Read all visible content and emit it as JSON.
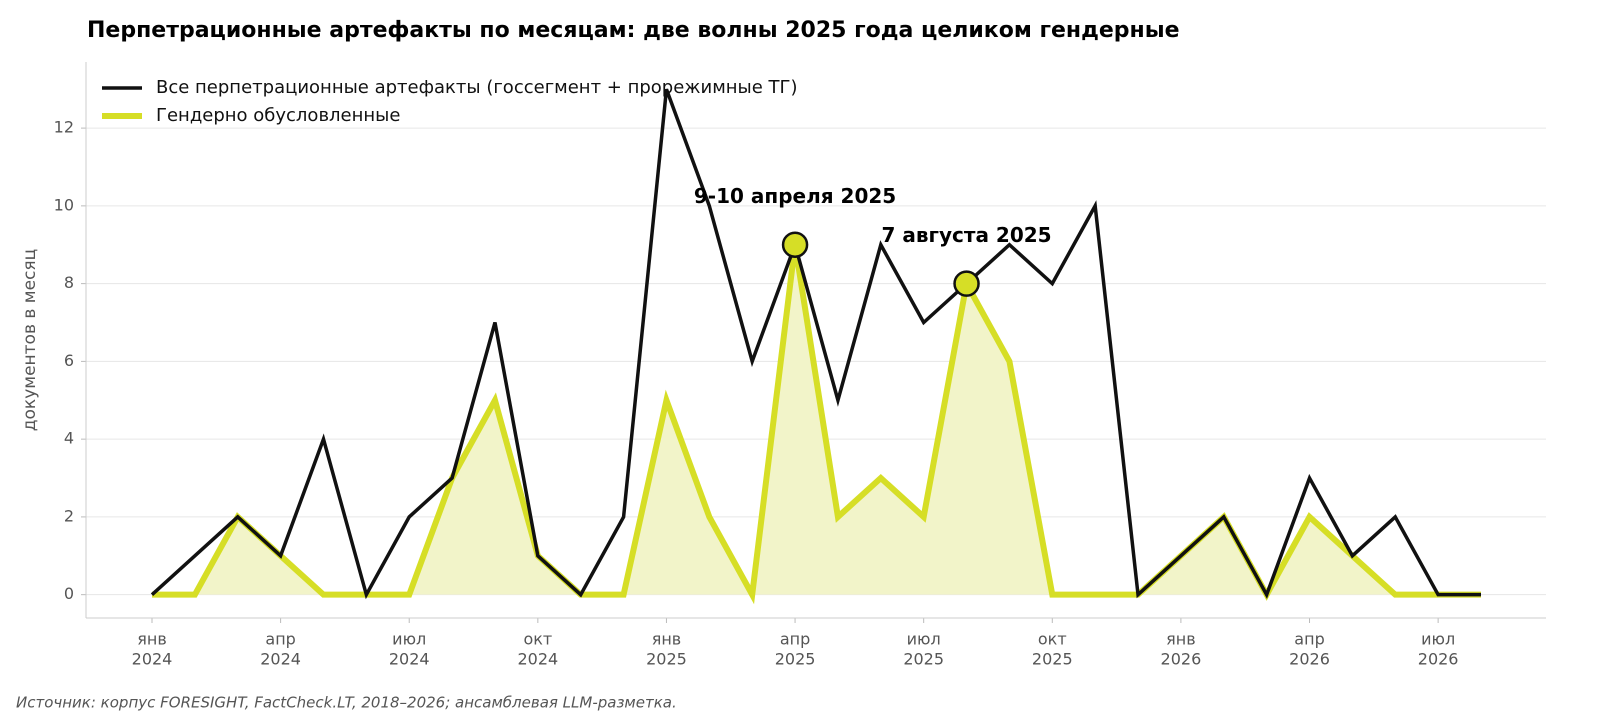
{
  "chart_data": {
    "type": "line",
    "title": "Перпетрационные артефакты по месяцам: две волны 2025 года целиком гендерные",
    "y_label": "документов в месяц",
    "source": "Источник: корпус FORESIGHT, FactCheck.LT, 2018–2026; ансамблевая LLM-разметка.",
    "x": [
      "2024-01",
      "2024-02",
      "2024-03",
      "2024-04",
      "2024-05",
      "2024-06",
      "2024-07",
      "2024-08",
      "2024-09",
      "2024-10",
      "2024-11",
      "2024-12",
      "2025-01",
      "2025-02",
      "2025-03",
      "2025-04",
      "2025-05",
      "2025-06",
      "2025-07",
      "2025-08",
      "2025-09",
      "2025-10",
      "2025-11",
      "2025-12",
      "2026-01",
      "2026-02",
      "2026-03",
      "2026-04",
      "2026-05",
      "2026-06",
      "2026-07",
      "2026-08"
    ],
    "series": [
      {
        "name": "Все перпетрационные артефакты (госсегмент + прорежимные ТГ)",
        "color": "#111111",
        "values": [
          0,
          1,
          2,
          1,
          4,
          0,
          2,
          3,
          7,
          1,
          0,
          2,
          13,
          10,
          6,
          9,
          5,
          9,
          7,
          8,
          9,
          8,
          10,
          0,
          1,
          2,
          0,
          3,
          1,
          2,
          0,
          0
        ]
      },
      {
        "name": "Гендерно обусловленные",
        "color": "#d6de26",
        "fill": "#f2f4c9",
        "values": [
          0,
          0,
          2,
          1,
          0,
          0,
          0,
          3,
          5,
          1,
          0,
          0,
          5,
          2,
          0,
          9,
          2,
          3,
          2,
          8,
          6,
          0,
          0,
          0,
          1,
          2,
          0,
          2,
          1,
          0,
          0,
          0
        ]
      }
    ],
    "annotations": [
      {
        "text": "9-10 апреля 2025",
        "x": "2025-04",
        "y": 9
      },
      {
        "text": "7 августа 2025",
        "x": "2025-08",
        "y": 8
      }
    ],
    "ylim": [
      -0.6,
      13.7
    ],
    "yticks": [
      0,
      2,
      4,
      6,
      8,
      10,
      12
    ],
    "xticks": [
      {
        "value": "2024-01",
        "label": [
          "янв",
          "2024"
        ]
      },
      {
        "value": "2024-04",
        "label": [
          "апр",
          "2024"
        ]
      },
      {
        "value": "2024-07",
        "label": [
          "июл",
          "2024"
        ]
      },
      {
        "value": "2024-10",
        "label": [
          "окт",
          "2024"
        ]
      },
      {
        "value": "2025-01",
        "label": [
          "янв",
          "2025"
        ]
      },
      {
        "value": "2025-04",
        "label": [
          "апр",
          "2025"
        ]
      },
      {
        "value": "2025-07",
        "label": [
          "июл",
          "2025"
        ]
      },
      {
        "value": "2025-10",
        "label": [
          "окт",
          "2025"
        ]
      },
      {
        "value": "2026-01",
        "label": [
          "янв",
          "2026"
        ]
      },
      {
        "value": "2026-04",
        "label": [
          "апр",
          "2026"
        ]
      },
      {
        "value": "2026-07",
        "label": [
          "июл",
          "2026"
        ]
      }
    ],
    "grid": true,
    "legend": "upper left"
  }
}
